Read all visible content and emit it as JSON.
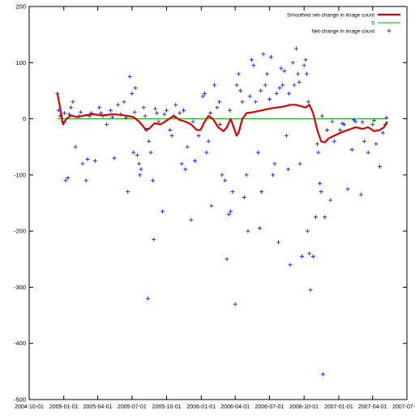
{
  "chart_data": {
    "type": "scatter",
    "title": "",
    "xlabel": "",
    "ylabel": "",
    "x_axis_type": "date",
    "xlim": [
      "2004-10-01",
      "2007-07-01"
    ],
    "ylim": [
      -500,
      200
    ],
    "x_ticks": [
      "2004-10-01",
      "2005-01-01",
      "2005-04-01",
      "2005-07-01",
      "2005-10-01",
      "2006-01-01",
      "2006-04-01",
      "2006-07-01",
      "2006-10-01",
      "2007-01-01",
      "2007-04-01",
      "2007-07-01"
    ],
    "y_ticks": [
      200,
      100,
      0,
      -100,
      -200,
      -300,
      -400,
      -500
    ],
    "grid": false,
    "legend_position": "top-right",
    "legend": [
      {
        "label": "Smoothed net-change in image count",
        "color": "#dd0000",
        "style": "line"
      },
      {
        "label": "0",
        "color": "#00aa00",
        "style": "line"
      },
      {
        "label": "Net-change in image count",
        "color": "#0000ff",
        "style": "plus"
      }
    ],
    "series": [
      {
        "name": "Smoothed net-change in image count",
        "style": "line",
        "color": "#dd0000",
        "points": [
          [
            "2004-12-15",
            45
          ],
          [
            "2004-12-22",
            20
          ],
          [
            "2004-12-30",
            -10
          ],
          [
            "2005-01-08",
            0
          ],
          [
            "2005-01-20",
            6
          ],
          [
            "2005-02-05",
            3
          ],
          [
            "2005-02-25",
            6
          ],
          [
            "2005-03-20",
            8
          ],
          [
            "2005-04-15",
            6
          ],
          [
            "2005-05-10",
            8
          ],
          [
            "2005-06-01",
            7
          ],
          [
            "2005-06-20",
            5
          ],
          [
            "2005-07-05",
            3
          ],
          [
            "2005-07-20",
            -5
          ],
          [
            "2005-08-05",
            -18
          ],
          [
            "2005-08-15",
            -18
          ],
          [
            "2005-08-30",
            -8
          ],
          [
            "2005-09-15",
            -10
          ],
          [
            "2005-10-01",
            -3
          ],
          [
            "2005-10-20",
            5
          ],
          [
            "2005-11-05",
            -2
          ],
          [
            "2005-11-20",
            -5
          ],
          [
            "2005-12-05",
            -10
          ],
          [
            "2005-12-20",
            -20
          ],
          [
            "2005-12-30",
            -20
          ],
          [
            "2006-01-10",
            -5
          ],
          [
            "2006-01-20",
            5
          ],
          [
            "2006-02-01",
            0
          ],
          [
            "2006-02-15",
            -15
          ],
          [
            "2006-03-01",
            -22
          ],
          [
            "2006-03-10",
            -15
          ],
          [
            "2006-03-20",
            0
          ],
          [
            "2006-03-28",
            -15
          ],
          [
            "2006-04-05",
            -30
          ],
          [
            "2006-04-10",
            -25
          ],
          [
            "2006-04-20",
            0
          ],
          [
            "2006-05-01",
            10
          ],
          [
            "2006-05-20",
            12
          ],
          [
            "2006-06-10",
            15
          ],
          [
            "2006-07-01",
            18
          ],
          [
            "2006-07-20",
            20
          ],
          [
            "2006-08-10",
            22
          ],
          [
            "2006-08-25",
            25
          ],
          [
            "2006-09-10",
            25
          ],
          [
            "2006-09-25",
            22
          ],
          [
            "2006-10-05",
            20
          ],
          [
            "2006-10-15",
            25
          ],
          [
            "2006-10-25",
            10
          ],
          [
            "2006-11-05",
            -20
          ],
          [
            "2006-11-15",
            -40
          ],
          [
            "2006-11-25",
            -42
          ],
          [
            "2006-12-05",
            -35
          ],
          [
            "2006-12-20",
            -30
          ],
          [
            "2007-01-05",
            -25
          ],
          [
            "2007-01-25",
            -20
          ],
          [
            "2007-02-15",
            -15
          ],
          [
            "2007-03-05",
            -18
          ],
          [
            "2007-03-20",
            -15
          ],
          [
            "2007-04-05",
            -22
          ],
          [
            "2007-04-20",
            -20
          ],
          [
            "2007-05-01",
            -15
          ],
          [
            "2007-05-10",
            -5
          ]
        ]
      },
      {
        "name": "0",
        "style": "line",
        "color": "#00aa00",
        "points": [
          [
            "2004-12-15",
            0
          ],
          [
            "2007-05-10",
            0
          ]
        ]
      },
      {
        "name": "Net-change in image count",
        "style": "plus",
        "color": "#0000ff",
        "points": [
          [
            "2004-12-15",
            45
          ],
          [
            "2004-12-18",
            15
          ],
          [
            "2004-12-22",
            5
          ],
          [
            "2004-12-28",
            -5
          ],
          [
            "2005-01-03",
            10
          ],
          [
            "2005-01-06",
            -110
          ],
          [
            "2005-01-12",
            -105
          ],
          [
            "2005-01-20",
            20
          ],
          [
            "2005-01-25",
            30
          ],
          [
            "2005-02-01",
            -50
          ],
          [
            "2005-02-10",
            5
          ],
          [
            "2005-02-20",
            -80
          ],
          [
            "2005-03-01",
            -110
          ],
          [
            "2005-03-05",
            -72
          ],
          [
            "2005-03-15",
            10
          ],
          [
            "2005-03-25",
            -75
          ],
          [
            "2005-04-05",
            20
          ],
          [
            "2005-04-15",
            5
          ],
          [
            "2005-04-25",
            -10
          ],
          [
            "2005-05-05",
            15
          ],
          [
            "2005-05-15",
            -70
          ],
          [
            "2005-05-25",
            25
          ],
          [
            "2005-06-10",
            30
          ],
          [
            "2005-06-20",
            -130
          ],
          [
            "2005-06-25",
            75
          ],
          [
            "2005-07-01",
            45
          ],
          [
            "2005-07-05",
            -60
          ],
          [
            "2005-07-10",
            55
          ],
          [
            "2005-07-15",
            -65
          ],
          [
            "2005-07-20",
            -80
          ],
          [
            "2005-07-22",
            -100
          ],
          [
            "2005-07-25",
            -90
          ],
          [
            "2005-08-01",
            20
          ],
          [
            "2005-08-08",
            -20
          ],
          [
            "2005-08-12",
            -320
          ],
          [
            "2005-08-15",
            -40
          ],
          [
            "2005-08-20",
            -60
          ],
          [
            "2005-08-25",
            -110
          ],
          [
            "2005-08-28",
            -215
          ],
          [
            "2005-09-05",
            10
          ],
          [
            "2005-09-10",
            -5
          ],
          [
            "2005-09-20",
            -165
          ],
          [
            "2005-10-01",
            15
          ],
          [
            "2005-10-10",
            -20
          ],
          [
            "2005-10-15",
            -30
          ],
          [
            "2005-10-25",
            25
          ],
          [
            "2005-11-05",
            10
          ],
          [
            "2005-11-10",
            -80
          ],
          [
            "2005-11-20",
            -90
          ],
          [
            "2005-11-25",
            -50
          ],
          [
            "2005-12-05",
            -180
          ],
          [
            "2005-12-15",
            -75
          ],
          [
            "2005-12-25",
            -30
          ],
          [
            "2006-01-05",
            40
          ],
          [
            "2006-01-10",
            45
          ],
          [
            "2006-01-15",
            -60
          ],
          [
            "2006-01-20",
            -40
          ],
          [
            "2006-01-28",
            -155
          ],
          [
            "2006-02-05",
            60
          ],
          [
            "2006-02-12",
            20
          ],
          [
            "2006-02-18",
            30
          ],
          [
            "2006-02-25",
            -100
          ],
          [
            "2006-03-05",
            -110
          ],
          [
            "2006-03-10",
            -250
          ],
          [
            "2006-03-15",
            -170
          ],
          [
            "2006-03-20",
            -165
          ],
          [
            "2006-03-25",
            -130
          ],
          [
            "2006-04-01",
            -330
          ],
          [
            "2006-04-05",
            60
          ],
          [
            "2006-04-10",
            80
          ],
          [
            "2006-04-15",
            50
          ],
          [
            "2006-04-25",
            -140
          ],
          [
            "2006-05-01",
            -100
          ],
          [
            "2006-05-05",
            -200
          ],
          [
            "2006-05-15",
            105
          ],
          [
            "2006-05-20",
            95
          ],
          [
            "2006-05-25",
            30
          ],
          [
            "2006-06-01",
            -60
          ],
          [
            "2006-06-05",
            -195
          ],
          [
            "2006-06-10",
            -130
          ],
          [
            "2006-06-15",
            115
          ],
          [
            "2006-06-20",
            60
          ],
          [
            "2006-06-25",
            80
          ],
          [
            "2006-07-05",
            110
          ],
          [
            "2006-07-10",
            -100
          ],
          [
            "2006-07-15",
            -80
          ],
          [
            "2006-07-20",
            45
          ],
          [
            "2006-07-25",
            -220
          ],
          [
            "2006-08-01",
            90
          ],
          [
            "2006-08-05",
            60
          ],
          [
            "2006-08-10",
            85
          ],
          [
            "2006-08-15",
            -30
          ],
          [
            "2006-08-20",
            -90
          ],
          [
            "2006-08-25",
            -260
          ],
          [
            "2006-09-01",
            100
          ],
          [
            "2006-09-05",
            60
          ],
          [
            "2006-09-10",
            125
          ],
          [
            "2006-09-15",
            80
          ],
          [
            "2006-09-20",
            -80
          ],
          [
            "2006-09-25",
            -245
          ],
          [
            "2006-10-01",
            95
          ],
          [
            "2006-10-05",
            105
          ],
          [
            "2006-10-08",
            80
          ],
          [
            "2006-10-10",
            -200
          ],
          [
            "2006-10-15",
            -240
          ],
          [
            "2006-10-18",
            -305
          ],
          [
            "2006-10-25",
            -245
          ],
          [
            "2006-11-01",
            -175
          ],
          [
            "2006-11-05",
            -45
          ],
          [
            "2006-11-08",
            -60
          ],
          [
            "2006-11-12",
            -115
          ],
          [
            "2006-11-15",
            -130
          ],
          [
            "2006-11-20",
            -455
          ],
          [
            "2006-11-25",
            -175
          ],
          [
            "2006-12-01",
            -20
          ],
          [
            "2006-12-10",
            -145
          ],
          [
            "2006-12-20",
            -40
          ],
          [
            "2007-01-05",
            -20
          ],
          [
            "2007-01-15",
            -10
          ],
          [
            "2007-01-25",
            -125
          ],
          [
            "2007-02-05",
            -55
          ],
          [
            "2007-02-15",
            -5
          ],
          [
            "2007-03-01",
            -135
          ],
          [
            "2007-03-10",
            -40
          ],
          [
            "2007-03-20",
            -60
          ],
          [
            "2007-04-01",
            -10
          ],
          [
            "2007-04-10",
            -45
          ],
          [
            "2007-04-20",
            -85
          ],
          [
            "2007-04-28",
            -25
          ],
          [
            "2007-05-05",
            -10
          ],
          [
            "2005-01-15",
            8
          ],
          [
            "2005-02-15",
            12
          ],
          [
            "2005-03-10",
            5
          ],
          [
            "2005-04-10",
            10
          ],
          [
            "2005-05-10",
            3
          ],
          [
            "2005-06-01",
            8
          ],
          [
            "2005-06-15",
            2
          ],
          [
            "2005-07-08",
            12
          ],
          [
            "2005-08-05",
            5
          ],
          [
            "2005-09-01",
            18
          ],
          [
            "2005-09-25",
            8
          ],
          [
            "2005-10-20",
            5
          ],
          [
            "2005-11-15",
            15
          ],
          [
            "2005-12-10",
            -5
          ],
          [
            "2006-01-25",
            10
          ],
          [
            "2006-02-20",
            -10
          ],
          [
            "2006-03-18",
            15
          ],
          [
            "2006-04-20",
            30
          ],
          [
            "2006-05-10",
            40
          ],
          [
            "2006-06-08",
            50
          ],
          [
            "2006-07-01",
            35
          ],
          [
            "2006-07-28",
            55
          ],
          [
            "2006-08-22",
            45
          ],
          [
            "2006-09-18",
            65
          ],
          [
            "2006-10-12",
            30
          ],
          [
            "2006-11-18",
            5
          ],
          [
            "2006-12-15",
            -5
          ],
          [
            "2007-01-10",
            -8
          ],
          [
            "2007-02-10",
            -2
          ],
          [
            "2007-03-05",
            -6
          ],
          [
            "2007-04-05",
            -3
          ],
          [
            "2007-05-08",
            2
          ]
        ]
      }
    ]
  }
}
